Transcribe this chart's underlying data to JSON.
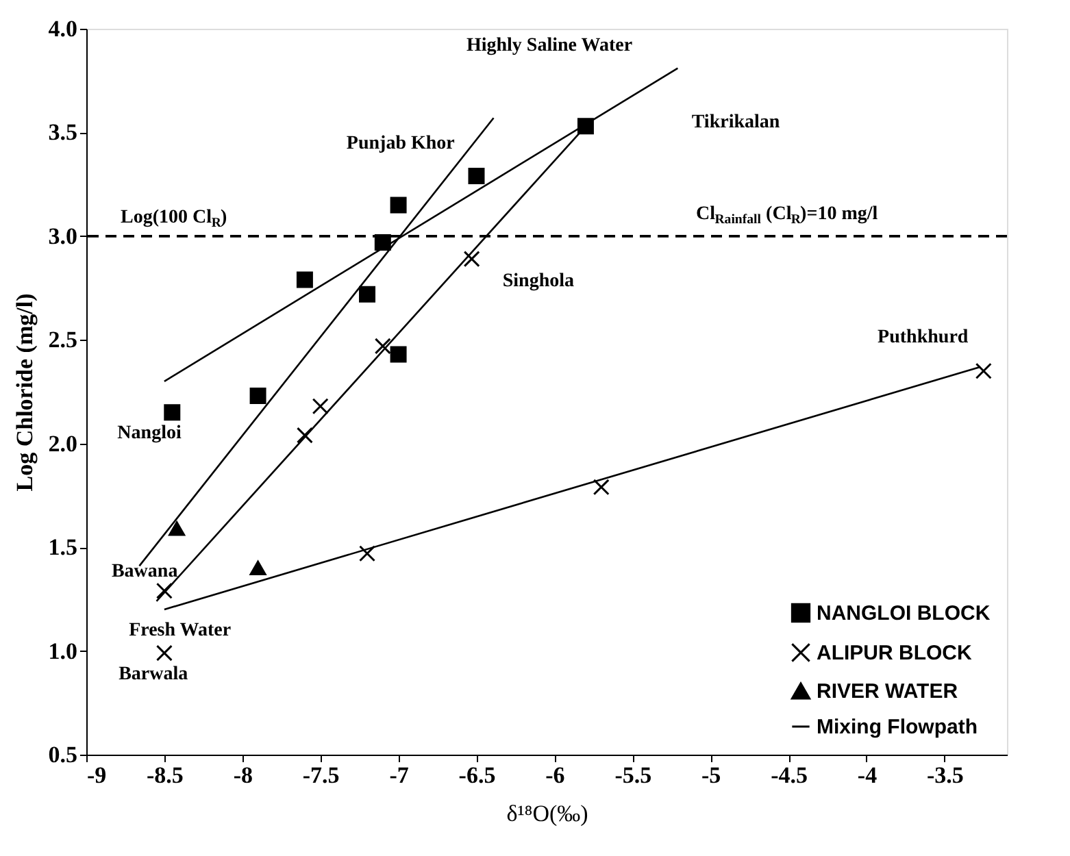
{
  "chart_data": {
    "type": "scatter",
    "xlabel": "δ¹⁸O(‰)",
    "ylabel": "Log Chloride (mg/l)",
    "xlim": [
      -9,
      -3.1
    ],
    "ylim": [
      0.5,
      4.0
    ],
    "xticks": [
      -9,
      -8.5,
      -8,
      -7.5,
      -7,
      -6.5,
      -6,
      -5.5,
      -5,
      -4.5,
      -4,
      -3.5
    ],
    "yticks": [
      {
        "value": 0.5,
        "label": "0.5"
      },
      {
        "value": 1,
        "label": "1.0"
      },
      {
        "value": 1.5,
        "label": "1.5"
      },
      {
        "value": 2,
        "label": "2.0"
      },
      {
        "value": 2.5,
        "label": "2.5"
      },
      {
        "value": 3,
        "label": "3.0"
      },
      {
        "value": 3.5,
        "label": "3.5"
      },
      {
        "value": 4,
        "label": "4.0"
      }
    ],
    "grid": false,
    "legend": "bottom right",
    "series": [
      {
        "name": "NANGLOI BLOCK",
        "marker": "square",
        "color": "#000000",
        "x": [
          -5.8,
          -6.5,
          -7.0,
          -7.1,
          -7.6,
          -7.2,
          -7.0,
          -7.9,
          -8.45
        ],
        "values": [
          3.53,
          3.29,
          3.15,
          2.97,
          2.79,
          2.72,
          2.43,
          2.23,
          2.15
        ]
      },
      {
        "name": "ALIPUR BLOCK",
        "marker": "cross",
        "color": "#000000",
        "x": [
          -6.53,
          -7.1,
          -7.5,
          -7.6,
          -8.5,
          -8.5,
          -7.2,
          -5.7,
          -3.25
        ],
        "values": [
          2.89,
          2.47,
          2.18,
          2.04,
          1.29,
          0.99,
          1.47,
          1.79,
          2.35
        ]
      },
      {
        "name": "RIVER WATER",
        "marker": "triangle",
        "color": "#000000",
        "x": [
          -8.42,
          -7.9
        ],
        "values": [
          1.59,
          1.4
        ]
      },
      {
        "name": "Mixing Flowpath",
        "type": "line",
        "color": "#000000",
        "x": [
          -8.5,
          -5.21
        ],
        "values": [
          2.3,
          3.81
        ]
      },
      {
        "type": "line",
        "color": "#000000",
        "x": [
          -8.66,
          -6.39
        ],
        "values": [
          1.41,
          3.57
        ]
      },
      {
        "type": "line",
        "color": "#000000",
        "x": [
          -8.55,
          -5.8
        ],
        "values": [
          1.24,
          3.53
        ]
      },
      {
        "type": "line",
        "color": "#000000",
        "x": [
          -8.5,
          -3.27
        ],
        "values": [
          1.2,
          2.37
        ]
      }
    ],
    "ref_lines": [
      {
        "axis": "y",
        "value": 3,
        "label": "Log(100 Cl$_{R}$)",
        "line_style": "dashed",
        "color": "#000000"
      }
    ],
    "annotations": [
      "Highly Saline Water",
      "Tikrikalan",
      {
        "text": "Punjab Khor",
        "x": -7.0,
        "y": 3.15
      },
      "Cl$_{Rainfall}$ (Cl$_{R}$)=10 mg/l",
      {
        "text": "Singhola",
        "x": -6.53,
        "y": 2.89
      },
      {
        "text": "Nangloi",
        "x": -8.45,
        "y": 2.15
      },
      {
        "text": "Puthkhurd",
        "x": -3.25,
        "y": 2.35
      },
      {
        "text": "Bawana",
        "x": -8.66,
        "y": 1.41
      },
      {
        "text": "Fresh Water",
        "x": -8.5,
        "y": 1.2
      },
      {
        "text": "Barwala",
        "x": -8.5,
        "y": 0.99
      }
    ]
  }
}
